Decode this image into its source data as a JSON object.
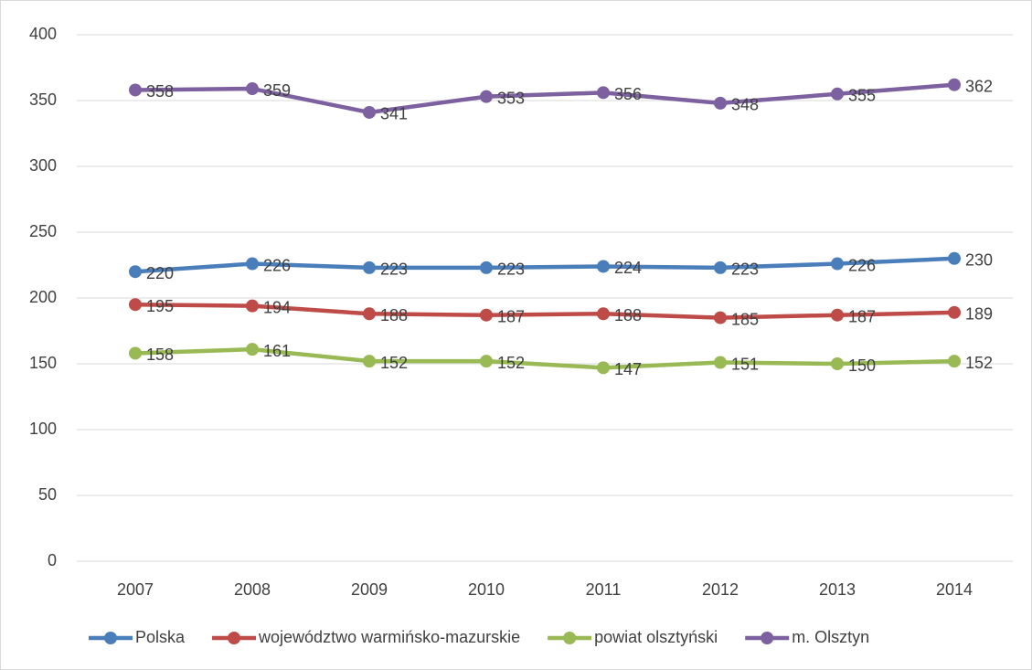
{
  "chart_data": {
    "type": "line",
    "categories": [
      "2007",
      "2008",
      "2009",
      "2010",
      "2011",
      "2012",
      "2013",
      "2014"
    ],
    "series": [
      {
        "name": "Polska",
        "color": "#4a7ebb",
        "values": [
          220,
          226,
          223,
          223,
          224,
          223,
          226,
          230
        ]
      },
      {
        "name": "województwo warmińsko-mazurskie",
        "color": "#be4b48",
        "values": [
          195,
          194,
          188,
          187,
          188,
          185,
          187,
          189
        ]
      },
      {
        "name": "powiat olsztyński",
        "color": "#98b954",
        "values": [
          158,
          161,
          152,
          152,
          147,
          151,
          150,
          152
        ]
      },
      {
        "name": "m. Olsztyn",
        "color": "#7d60a0",
        "values": [
          358,
          359,
          341,
          353,
          356,
          348,
          355,
          362
        ]
      }
    ],
    "ylim": [
      0,
      400
    ],
    "yticks": [
      0,
      50,
      100,
      150,
      200,
      250,
      300,
      350,
      400
    ],
    "grid": true,
    "legend": "bottom"
  }
}
